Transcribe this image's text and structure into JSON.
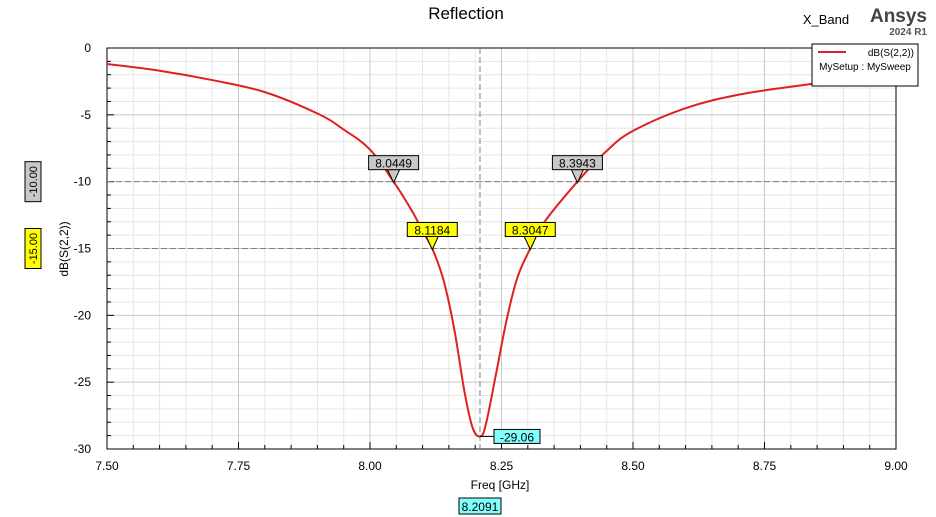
{
  "chart_data": {
    "type": "line",
    "title": "Reflection",
    "xlabel": "Freq [GHz]",
    "ylabel": "dB(S(2,2))",
    "xlim": [
      7.5,
      9.0
    ],
    "ylim": [
      -30,
      0
    ],
    "x_ticks": [
      "7.50",
      "7.75",
      "8.00",
      "8.25",
      "8.50",
      "8.75",
      "9.00"
    ],
    "y_ticks": [
      "0",
      "-5",
      "-10",
      "-15",
      "-20",
      "-25",
      "-30"
    ],
    "grid": true,
    "legend_position": "top-right",
    "series": [
      {
        "name": "dB(S(2,2))",
        "color": "#e02020",
        "x": [
          7.5,
          7.6,
          7.7,
          7.8,
          7.9,
          7.95,
          8.0,
          8.0449,
          8.08,
          8.1,
          8.1184,
          8.14,
          8.16,
          8.18,
          8.195,
          8.2091,
          8.22,
          8.24,
          8.26,
          8.28,
          8.3047,
          8.33,
          8.3943,
          8.45,
          8.5,
          8.6,
          8.7,
          8.8,
          8.9,
          9.0
        ],
        "y": [
          -1.2,
          -1.7,
          -2.4,
          -3.3,
          -4.9,
          -6.1,
          -7.6,
          -10.0,
          -12.2,
          -13.7,
          -15.0,
          -17.4,
          -21.0,
          -25.8,
          -28.4,
          -29.06,
          -28.2,
          -24.3,
          -20.3,
          -17.2,
          -15.0,
          -13.1,
          -10.0,
          -7.7,
          -6.2,
          -4.5,
          -3.5,
          -2.9,
          -2.4,
          -2.1
        ]
      }
    ],
    "legend_subtitle": "MySetup : MySweep",
    "markers": [
      {
        "x": 8.0449,
        "y": -10,
        "label": "8.0449",
        "kind": "grey"
      },
      {
        "x": 8.3943,
        "y": -10,
        "label": "8.3943",
        "kind": "grey"
      },
      {
        "x": 8.1184,
        "y": -15,
        "label": "8.1184",
        "kind": "yellow"
      },
      {
        "x": 8.3047,
        "y": -15,
        "label": "8.3047",
        "kind": "yellow"
      }
    ],
    "cursor": {
      "x": 8.2091,
      "x_label": "8.2091",
      "y_value": -29.06,
      "y_label": "-29.06"
    },
    "hlines": [
      {
        "y": -10,
        "label": "-10.00",
        "kind": "grey"
      },
      {
        "y": -15,
        "label": "-15.00",
        "kind": "yellow"
      }
    ]
  },
  "header": {
    "design_name": "X_Band",
    "brand": "Ansys",
    "version": "2024 R1"
  },
  "colors": {
    "curve": "#e02020",
    "grey_marker_fill": "#c8c8c8",
    "yellow_marker_fill": "#ffff00",
    "cyan_marker_fill": "#80ffff",
    "grid_major": "#c8c8c8",
    "grid_minor": "#e6e6e6"
  }
}
